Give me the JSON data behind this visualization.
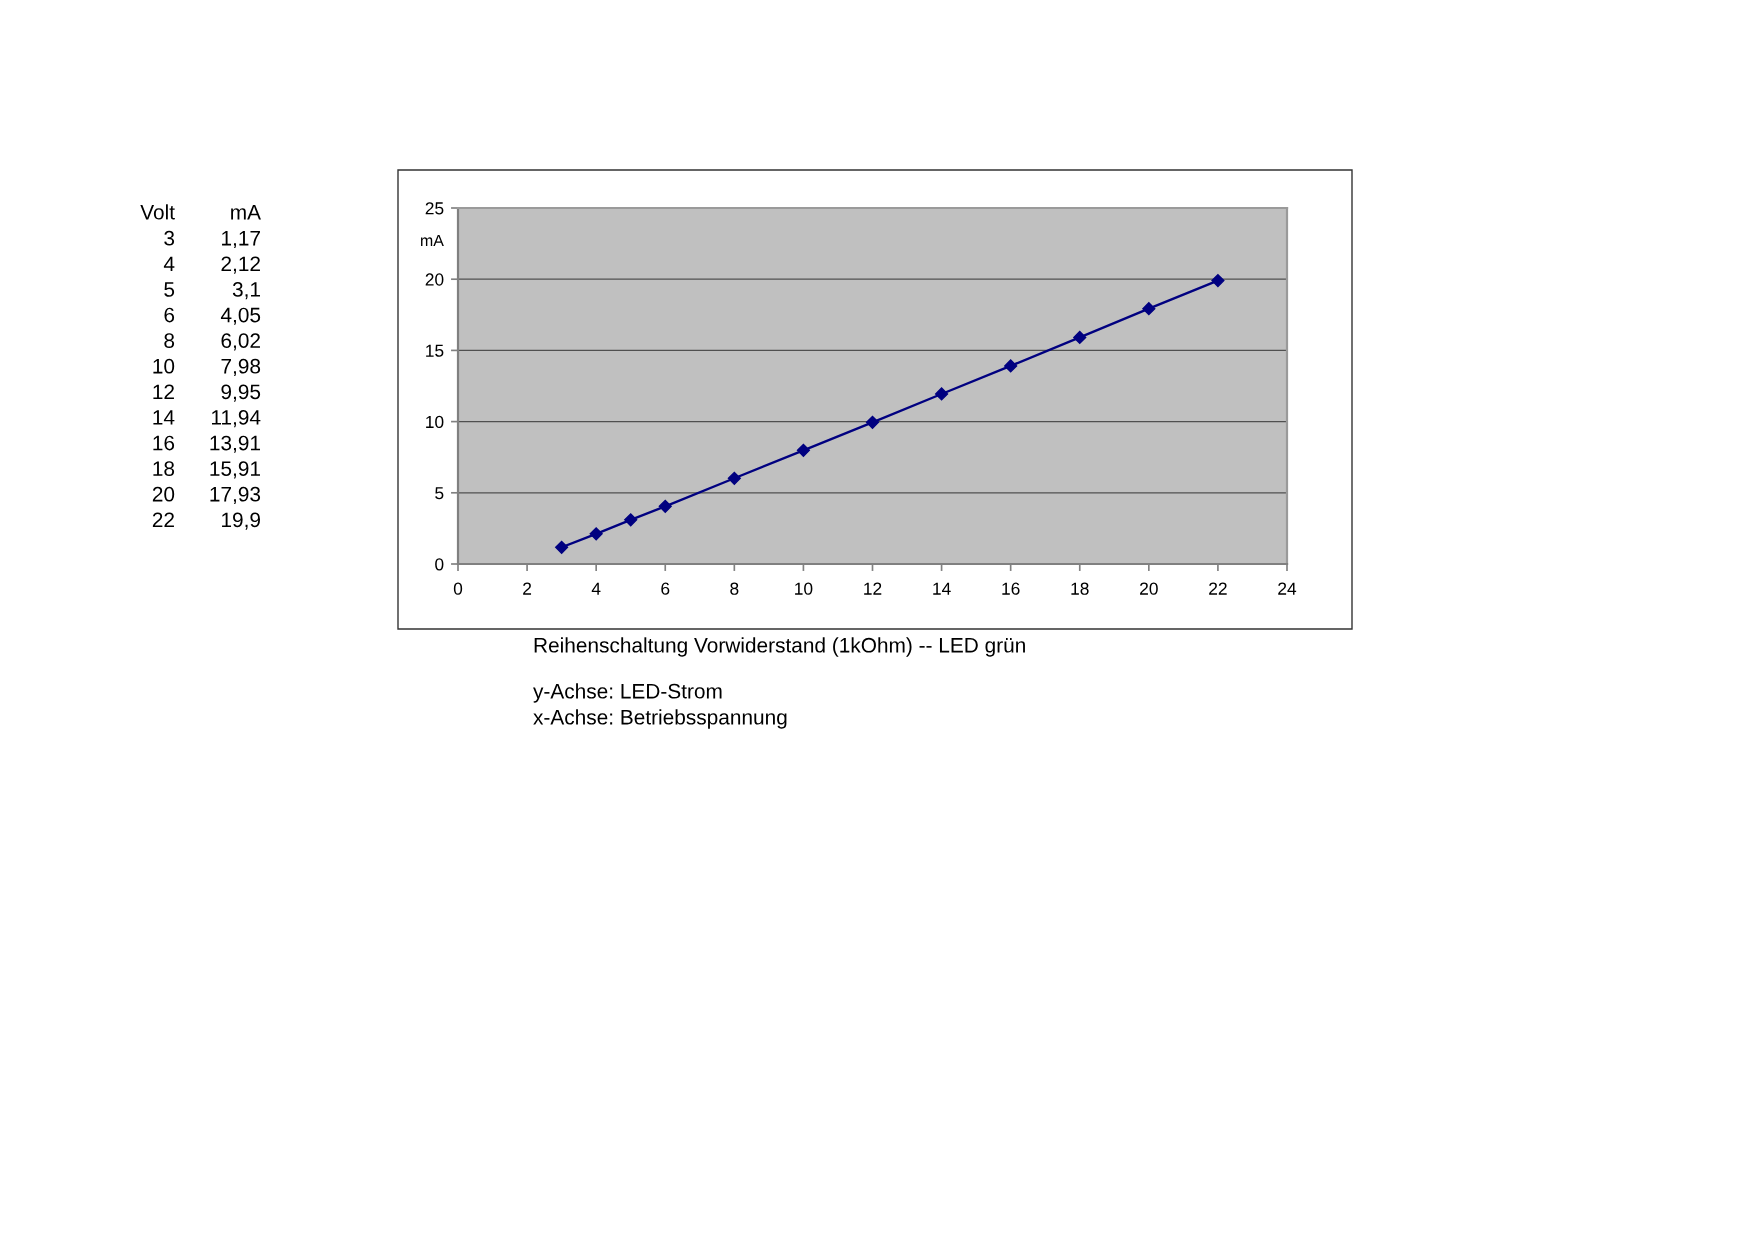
{
  "chart_data": [
    {
      "type": "other",
      "annotations": [
        "Volt",
        "mA",
        "3",
        "1,17",
        "4",
        "2,12",
        "5",
        "3,1",
        "6",
        "4,05",
        "8",
        "6,02",
        "10",
        "7,98",
        "12",
        "9,95",
        "14",
        "11,94",
        "16",
        "13,91",
        "18",
        "15,91",
        "20",
        "17,93",
        "22",
        "19,9"
      ]
    },
    {
      "type": "line",
      "title": "Reihenschaltung Vorwiderstand (1kOhm) -- LED grün",
      "ylabel": "mA",
      "annotations": [
        "y-Achse: LED-Strom",
        "x-Achse: Betriebsspannung"
      ],
      "x": [
        3,
        4,
        5,
        6,
        8,
        10,
        12,
        14,
        16,
        18,
        20,
        22
      ],
      "series": [
        {
          "color": "#000080",
          "values": [
            1.17,
            2.12,
            3.1,
            4.05,
            6.02,
            7.98,
            9.95,
            11.94,
            13.91,
            15.91,
            17.93,
            19.9
          ]
        }
      ],
      "xlim": [
        0,
        24
      ],
      "xticks": [
        0,
        2,
        4,
        6,
        8,
        10,
        12,
        14,
        16,
        18,
        20,
        22,
        24
      ],
      "ylim": [
        0,
        25
      ],
      "yticks": [
        0,
        5,
        10,
        15,
        20,
        25
      ],
      "grid": "y",
      "marker": "diamond",
      "line_style": "solid"
    }
  ]
}
